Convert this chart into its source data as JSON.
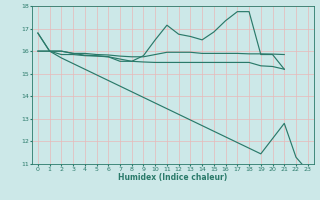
{
  "xlabel": "Humidex (Indice chaleur)",
  "x": [
    0,
    1,
    2,
    3,
    4,
    5,
    6,
    7,
    8,
    9,
    10,
    11,
    12,
    13,
    14,
    15,
    16,
    17,
    18,
    19,
    20,
    21,
    22,
    23
  ],
  "line1": [
    16.8,
    16.0,
    15.85,
    15.85,
    15.8,
    15.78,
    15.75,
    15.55,
    15.55,
    15.8,
    16.5,
    17.15,
    16.75,
    16.65,
    16.5,
    16.85,
    17.35,
    17.75,
    17.75,
    15.85,
    15.85,
    15.2,
    null,
    null
  ],
  "line2": [
    16.0,
    16.0,
    16.0,
    15.9,
    15.9,
    15.85,
    15.83,
    15.78,
    15.75,
    15.75,
    15.85,
    15.95,
    15.95,
    15.95,
    15.9,
    15.9,
    15.9,
    15.9,
    15.88,
    15.88,
    15.87,
    15.85,
    null,
    null
  ],
  "line3": [
    16.0,
    16.0,
    16.0,
    15.9,
    15.82,
    15.8,
    15.75,
    15.65,
    15.55,
    15.52,
    15.5,
    15.5,
    15.5,
    15.5,
    15.5,
    15.5,
    15.5,
    15.5,
    15.5,
    15.35,
    15.32,
    15.2,
    null,
    null
  ],
  "line4": [
    16.8,
    16.0,
    15.7,
    15.45,
    15.2,
    14.95,
    14.7,
    14.45,
    14.2,
    13.95,
    13.7,
    13.45,
    13.2,
    12.95,
    12.7,
    12.45,
    12.2,
    11.95,
    11.7,
    11.45,
    null,
    12.8,
    11.3,
    10.7
  ],
  "bg_color": "#cce8e8",
  "grid_color": "#e8b8b8",
  "line_color": "#2a7a6a",
  "ylim": [
    11,
    18
  ],
  "xlim": [
    -0.5,
    23.5
  ],
  "yticks": [
    11,
    12,
    13,
    14,
    15,
    16,
    17,
    18
  ],
  "xticks": [
    0,
    1,
    2,
    3,
    4,
    5,
    6,
    7,
    8,
    9,
    10,
    11,
    12,
    13,
    14,
    15,
    16,
    17,
    18,
    19,
    20,
    21,
    22,
    23
  ]
}
